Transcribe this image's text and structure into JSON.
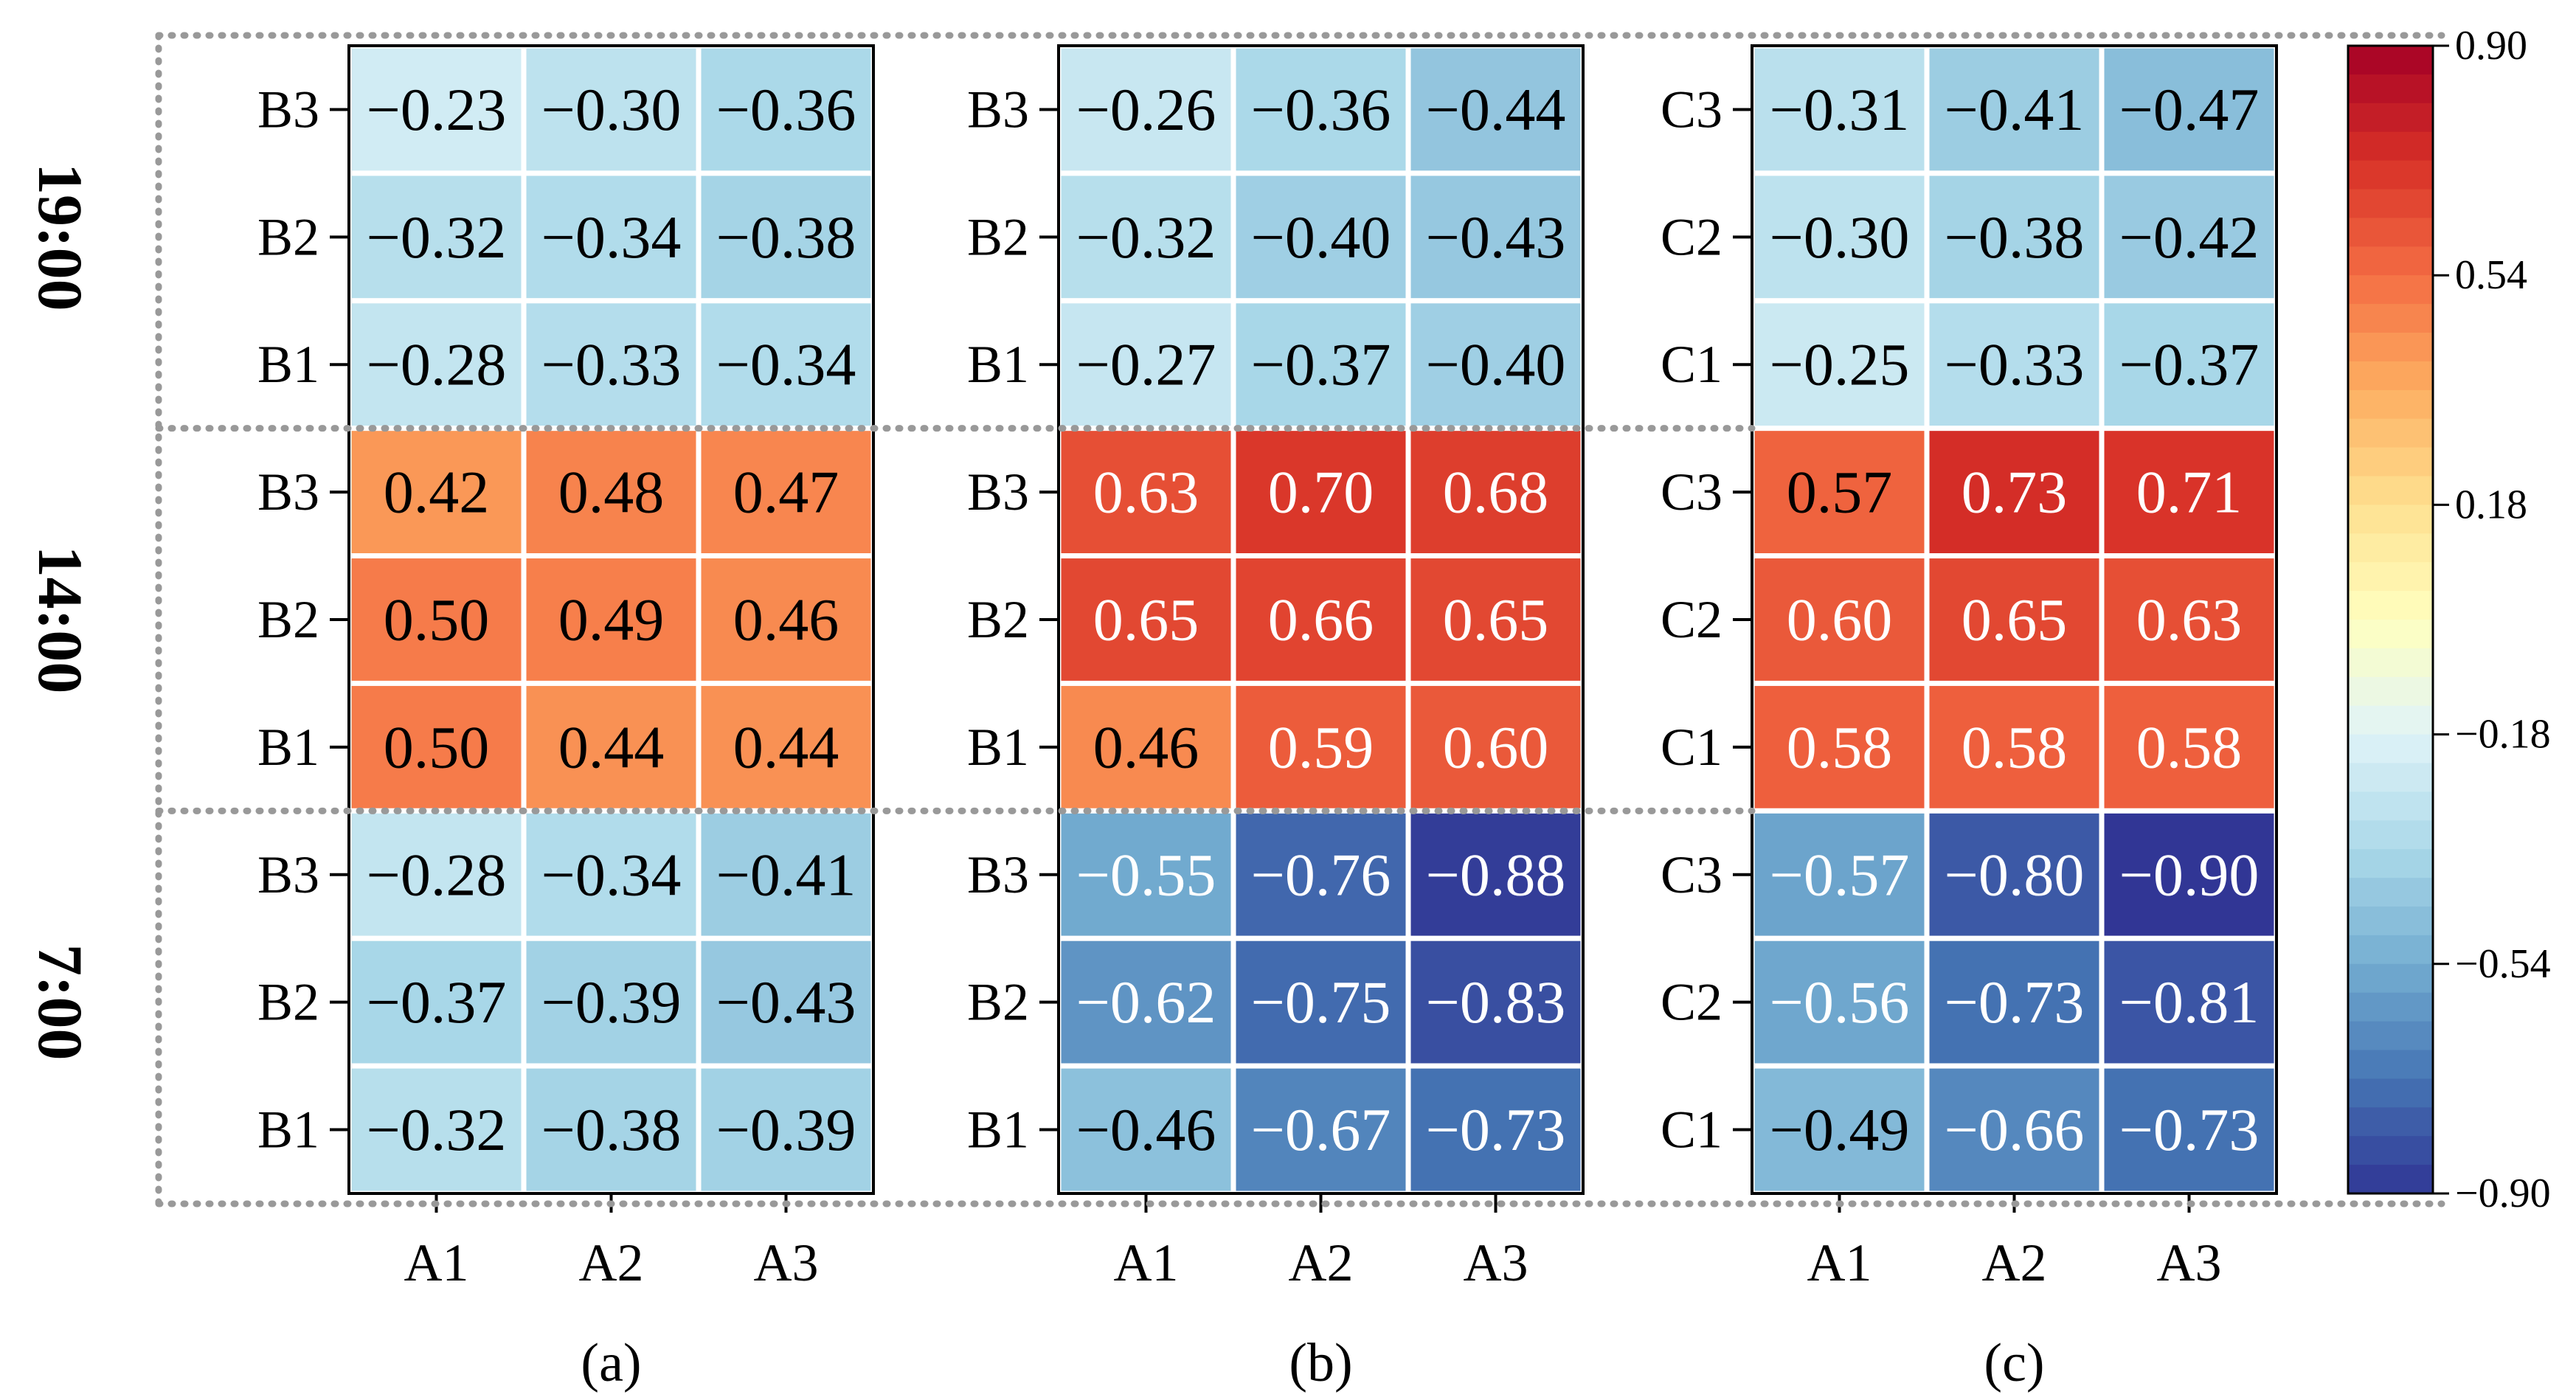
{
  "chart_data": {
    "type": "heatmap",
    "row_groups": [
      "19:00",
      "14:00",
      "7:00"
    ],
    "colorbar": {
      "min": -0.9,
      "max": 0.9,
      "ticks": [
        "0.90",
        "0.54",
        "0.18",
        "−0.18",
        "−0.54",
        "−0.90"
      ],
      "tick_values": [
        0.9,
        0.54,
        0.18,
        -0.18,
        -0.54,
        -0.9
      ],
      "colormap": "RdYlBu_r"
    },
    "panels": [
      {
        "label": "(a)",
        "x_ticks": [
          "A1",
          "A2",
          "A3"
        ],
        "y_ticks": [
          "B3",
          "B2",
          "B1",
          "B3",
          "B2",
          "B1",
          "B3",
          "B2",
          "B1"
        ],
        "values": [
          [
            -0.23,
            -0.3,
            -0.36
          ],
          [
            -0.32,
            -0.34,
            -0.38
          ],
          [
            -0.28,
            -0.33,
            -0.34
          ],
          [
            0.42,
            0.48,
            0.47
          ],
          [
            0.5,
            0.49,
            0.46
          ],
          [
            0.5,
            0.44,
            0.44
          ],
          [
            -0.28,
            -0.34,
            -0.41
          ],
          [
            -0.37,
            -0.39,
            -0.43
          ],
          [
            -0.32,
            -0.38,
            -0.39
          ]
        ]
      },
      {
        "label": "(b)",
        "x_ticks": [
          "A1",
          "A2",
          "A3"
        ],
        "y_ticks": [
          "B3",
          "B2",
          "B1",
          "B3",
          "B2",
          "B1",
          "B3",
          "B2",
          "B1"
        ],
        "values": [
          [
            -0.26,
            -0.36,
            -0.44
          ],
          [
            -0.32,
            -0.4,
            -0.43
          ],
          [
            -0.27,
            -0.37,
            -0.4
          ],
          [
            0.63,
            0.7,
            0.68
          ],
          [
            0.65,
            0.66,
            0.65
          ],
          [
            0.46,
            0.59,
            0.6
          ],
          [
            -0.55,
            -0.76,
            -0.88
          ],
          [
            -0.62,
            -0.75,
            -0.83
          ],
          [
            -0.46,
            -0.67,
            -0.73
          ]
        ]
      },
      {
        "label": "(c)",
        "x_ticks": [
          "A1",
          "A2",
          "A3"
        ],
        "y_ticks": [
          "C3",
          "C2",
          "C1",
          "C3",
          "C2",
          "C1",
          "C3",
          "C2",
          "C1"
        ],
        "values": [
          [
            -0.31,
            -0.41,
            -0.47
          ],
          [
            -0.3,
            -0.38,
            -0.42
          ],
          [
            -0.25,
            -0.33,
            -0.37
          ],
          [
            0.57,
            0.73,
            0.71
          ],
          [
            0.6,
            0.65,
            0.63
          ],
          [
            0.58,
            0.58,
            0.58
          ],
          [
            -0.57,
            -0.8,
            -0.9
          ],
          [
            -0.56,
            -0.73,
            -0.81
          ],
          [
            -0.49,
            -0.66,
            -0.73
          ]
        ]
      }
    ]
  }
}
